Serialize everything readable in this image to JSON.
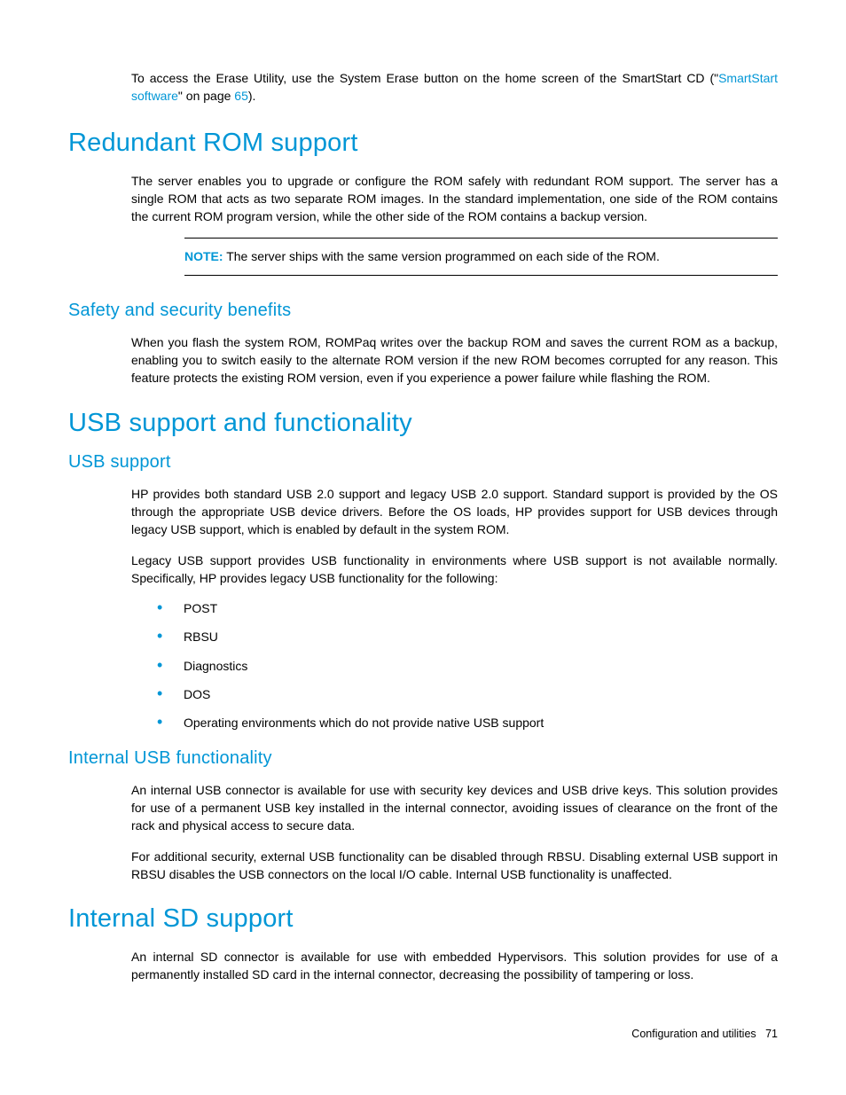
{
  "intro": {
    "text_before_link": "To access the Erase Utility, use the System Erase button on the home screen of the SmartStart CD (\"",
    "link1": "SmartStart software",
    "text_mid": "\" on page ",
    "link2": "65",
    "text_after": ")."
  },
  "heading1": "Redundant ROM support",
  "para1": "The server enables you to upgrade or configure the ROM safely with redundant ROM support. The server has a single ROM that acts as two separate ROM images. In the standard implementation, one side of the ROM contains the current ROM program version, while the other side of the ROM contains a backup version.",
  "note": {
    "label": "NOTE:",
    "text": "  The server ships with the same version programmed on each side of the ROM."
  },
  "heading2": "Safety and security benefits",
  "para2": "When you flash the system ROM, ROMPaq writes over the backup ROM and saves the current ROM as a backup, enabling you to switch easily to the alternate ROM version if the new ROM becomes corrupted for any reason. This feature protects the existing ROM version, even if you experience a power failure while flashing the ROM.",
  "heading3": "USB support and functionality",
  "heading4": "USB support",
  "para3": "HP provides both standard USB 2.0 support and legacy USB 2.0 support. Standard support is provided by the OS through the appropriate USB device drivers. Before the OS loads, HP provides support for USB devices through legacy USB support, which is enabled by default in the system ROM.",
  "para4": "Legacy USB support provides USB functionality in environments where USB support is not available normally. Specifically, HP provides legacy USB functionality for the following:",
  "list": [
    "POST",
    "RBSU",
    "Diagnostics",
    "DOS",
    "Operating environments which do not provide native USB support"
  ],
  "heading5": "Internal USB functionality",
  "para5": "An internal USB connector is available for use with security key devices and USB drive keys. This solution provides for use of a permanent USB key installed in the internal connector, avoiding issues of clearance on the front of the rack and physical access to secure data.",
  "para6": "For additional security, external USB functionality can be disabled through RBSU. Disabling external USB support in RBSU disables the USB connectors on the local I/O cable. Internal USB functionality is unaffected.",
  "heading6": "Internal SD support",
  "para7": "An internal SD connector is available for use with embedded Hypervisors. This solution provides for use of a permanently installed SD card in the internal connector, decreasing the possibility of tampering or loss.",
  "footer": {
    "section": "Configuration and utilities",
    "page": "71"
  },
  "colors": {
    "link_color": "#0096d6",
    "heading_color": "#0096d6",
    "text_color": "#000000",
    "background": "#ffffff"
  },
  "typography": {
    "body_fontsize": 14,
    "h1_fontsize": 29,
    "h2_fontsize": 20,
    "footer_fontsize": 12.5
  }
}
